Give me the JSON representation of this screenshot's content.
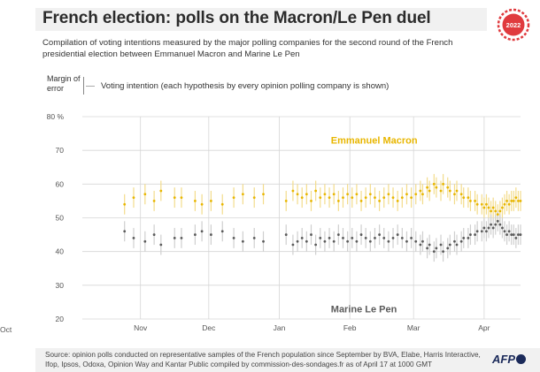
{
  "header": {
    "title": "French election: polls on the Macron/Le Pen duel",
    "subtitle": "Compilation of voting intentions measured by the major polling companies for the second round of the French presidential election between Emmanuel Macron and Marine Le Pen",
    "logo_text": "2022"
  },
  "legend": {
    "margin_label": "Margin of error",
    "point_label": "Voting intention (each hypothesis by every opinion polling company is shown)"
  },
  "footer": {
    "source": "Source: opinion polls conducted on representative samples of the French population since September by BVA, Elabe, Harris Interactive, Ifop, Ipsos, Odoxa, Opinion Way and Kantar Public compiled by commission-des-sondages.fr as of April 17 at 1000 GMT",
    "agency": "AFP"
  },
  "colors": {
    "macron": "#e8b600",
    "macron_bar": "#f3dc8c",
    "lepen": "#5b5b5b",
    "lepen_bar": "#cfcfcf",
    "grid": "#d6d6d6",
    "accent": "#e03a3e"
  },
  "chart_data": {
    "type": "scatter",
    "x_unit": "date",
    "yaxis": {
      "min": 20,
      "max": 80,
      "ticks": [
        20,
        30,
        40,
        50,
        60,
        70,
        80
      ],
      "top_tick_label": "80 %"
    },
    "xaxis": {
      "start": "2021-10-01",
      "end": "2022-04-17",
      "tick_labels": [
        "Oct",
        "Nov",
        "Dec",
        "Jan",
        "Feb",
        "Mar",
        "Apr"
      ],
      "tick_dates": [
        "2021-10-01",
        "2021-11-01",
        "2021-12-01",
        "2022-01-01",
        "2022-02-01",
        "2022-03-01",
        "2022-04-01"
      ]
    },
    "margin_of_error": 3,
    "grid": true,
    "series": [
      {
        "name": "Emmanuel Macron",
        "label_date": "2022-01-12",
        "label_value": 73,
        "points": [
          [
            "2021-10-25",
            54
          ],
          [
            "2021-10-29",
            56
          ],
          [
            "2021-11-03",
            57
          ],
          [
            "2021-11-07",
            55
          ],
          [
            "2021-11-10",
            58
          ],
          [
            "2021-11-16",
            56
          ],
          [
            "2021-11-19",
            56
          ],
          [
            "2021-11-25",
            55
          ],
          [
            "2021-11-28",
            54
          ],
          [
            "2021-12-02",
            55
          ],
          [
            "2021-12-07",
            54
          ],
          [
            "2021-12-12",
            56
          ],
          [
            "2021-12-16",
            57
          ],
          [
            "2021-12-21",
            56
          ],
          [
            "2021-12-25",
            57
          ],
          [
            "2022-01-04",
            55
          ],
          [
            "2022-01-07",
            58
          ],
          [
            "2022-01-09",
            57
          ],
          [
            "2022-01-11",
            56
          ],
          [
            "2022-01-13",
            57
          ],
          [
            "2022-01-15",
            55
          ],
          [
            "2022-01-17",
            58
          ],
          [
            "2022-01-19",
            56
          ],
          [
            "2022-01-21",
            57
          ],
          [
            "2022-01-23",
            56
          ],
          [
            "2022-01-25",
            57
          ],
          [
            "2022-01-27",
            55
          ],
          [
            "2022-01-29",
            56
          ],
          [
            "2022-01-31",
            57
          ],
          [
            "2022-02-02",
            56
          ],
          [
            "2022-02-04",
            57
          ],
          [
            "2022-02-06",
            55
          ],
          [
            "2022-02-08",
            56
          ],
          [
            "2022-02-10",
            57
          ],
          [
            "2022-02-12",
            56
          ],
          [
            "2022-02-14",
            55
          ],
          [
            "2022-02-16",
            56
          ],
          [
            "2022-02-18",
            57
          ],
          [
            "2022-02-20",
            56
          ],
          [
            "2022-02-22",
            55
          ],
          [
            "2022-02-24",
            56
          ],
          [
            "2022-02-26",
            57
          ],
          [
            "2022-02-28",
            56
          ],
          [
            "2022-03-02",
            57
          ],
          [
            "2022-03-04",
            58
          ],
          [
            "2022-03-05",
            57
          ],
          [
            "2022-03-07",
            59
          ],
          [
            "2022-03-08",
            58
          ],
          [
            "2022-03-10",
            60
          ],
          [
            "2022-03-11",
            59
          ],
          [
            "2022-03-13",
            58
          ],
          [
            "2022-03-14",
            60
          ],
          [
            "2022-03-16",
            59
          ],
          [
            "2022-03-17",
            58
          ],
          [
            "2022-03-19",
            57
          ],
          [
            "2022-03-20",
            58
          ],
          [
            "2022-03-22",
            57
          ],
          [
            "2022-03-23",
            56
          ],
          [
            "2022-03-25",
            56
          ],
          [
            "2022-03-26",
            55
          ],
          [
            "2022-03-28",
            55
          ],
          [
            "2022-03-29",
            54
          ],
          [
            "2022-03-31",
            54
          ],
          [
            "2022-04-01",
            53
          ],
          [
            "2022-04-02",
            54
          ],
          [
            "2022-04-03",
            53
          ],
          [
            "2022-04-04",
            52
          ],
          [
            "2022-04-05",
            53
          ],
          [
            "2022-04-06",
            52
          ],
          [
            "2022-04-07",
            51
          ],
          [
            "2022-04-08",
            52
          ],
          [
            "2022-04-09",
            53
          ],
          [
            "2022-04-10",
            54
          ],
          [
            "2022-04-11",
            55
          ],
          [
            "2022-04-12",
            54
          ],
          [
            "2022-04-13",
            55
          ],
          [
            "2022-04-14",
            55
          ],
          [
            "2022-04-15",
            56
          ],
          [
            "2022-04-16",
            55
          ],
          [
            "2022-04-17",
            55
          ]
        ]
      },
      {
        "name": "Marine Le Pen",
        "label_date": "2022-01-12",
        "label_value": 23,
        "points": [
          [
            "2021-10-25",
            46
          ],
          [
            "2021-10-29",
            44
          ],
          [
            "2021-11-03",
            43
          ],
          [
            "2021-11-07",
            45
          ],
          [
            "2021-11-10",
            42
          ],
          [
            "2021-11-16",
            44
          ],
          [
            "2021-11-19",
            44
          ],
          [
            "2021-11-25",
            45
          ],
          [
            "2021-11-28",
            46
          ],
          [
            "2021-12-02",
            45
          ],
          [
            "2021-12-07",
            46
          ],
          [
            "2021-12-12",
            44
          ],
          [
            "2021-12-16",
            43
          ],
          [
            "2021-12-21",
            44
          ],
          [
            "2021-12-25",
            43
          ],
          [
            "2022-01-04",
            45
          ],
          [
            "2022-01-07",
            42
          ],
          [
            "2022-01-09",
            43
          ],
          [
            "2022-01-11",
            44
          ],
          [
            "2022-01-13",
            43
          ],
          [
            "2022-01-15",
            45
          ],
          [
            "2022-01-17",
            42
          ],
          [
            "2022-01-19",
            44
          ],
          [
            "2022-01-21",
            43
          ],
          [
            "2022-01-23",
            44
          ],
          [
            "2022-01-25",
            43
          ],
          [
            "2022-01-27",
            45
          ],
          [
            "2022-01-29",
            44
          ],
          [
            "2022-01-31",
            43
          ],
          [
            "2022-02-02",
            44
          ],
          [
            "2022-02-04",
            43
          ],
          [
            "2022-02-06",
            45
          ],
          [
            "2022-02-08",
            44
          ],
          [
            "2022-02-10",
            43
          ],
          [
            "2022-02-12",
            44
          ],
          [
            "2022-02-14",
            45
          ],
          [
            "2022-02-16",
            44
          ],
          [
            "2022-02-18",
            43
          ],
          [
            "2022-02-20",
            44
          ],
          [
            "2022-02-22",
            45
          ],
          [
            "2022-02-24",
            44
          ],
          [
            "2022-02-26",
            43
          ],
          [
            "2022-02-28",
            44
          ],
          [
            "2022-03-02",
            43
          ],
          [
            "2022-03-04",
            42
          ],
          [
            "2022-03-05",
            43
          ],
          [
            "2022-03-07",
            41
          ],
          [
            "2022-03-08",
            42
          ],
          [
            "2022-03-10",
            40
          ],
          [
            "2022-03-11",
            41
          ],
          [
            "2022-03-13",
            42
          ],
          [
            "2022-03-14",
            40
          ],
          [
            "2022-03-16",
            41
          ],
          [
            "2022-03-17",
            42
          ],
          [
            "2022-03-19",
            43
          ],
          [
            "2022-03-20",
            42
          ],
          [
            "2022-03-22",
            43
          ],
          [
            "2022-03-23",
            44
          ],
          [
            "2022-03-25",
            44
          ],
          [
            "2022-03-26",
            45
          ],
          [
            "2022-03-28",
            45
          ],
          [
            "2022-03-29",
            46
          ],
          [
            "2022-03-31",
            46
          ],
          [
            "2022-04-01",
            47
          ],
          [
            "2022-04-02",
            46
          ],
          [
            "2022-04-03",
            47
          ],
          [
            "2022-04-04",
            48
          ],
          [
            "2022-04-05",
            47
          ],
          [
            "2022-04-06",
            48
          ],
          [
            "2022-04-07",
            49
          ],
          [
            "2022-04-08",
            48
          ],
          [
            "2022-04-09",
            47
          ],
          [
            "2022-04-10",
            46
          ],
          [
            "2022-04-11",
            45
          ],
          [
            "2022-04-12",
            46
          ],
          [
            "2022-04-13",
            45
          ],
          [
            "2022-04-14",
            45
          ],
          [
            "2022-04-15",
            44
          ],
          [
            "2022-04-16",
            45
          ],
          [
            "2022-04-17",
            45
          ]
        ]
      }
    ]
  }
}
